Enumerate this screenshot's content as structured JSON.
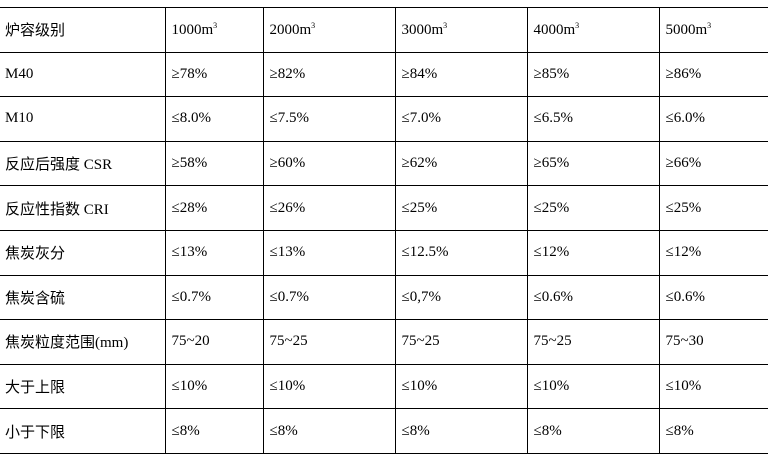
{
  "table": {
    "header": {
      "label": "炉容级别",
      "columns": [
        "1000m",
        "2000m",
        "3000m",
        "4000m",
        "5000m"
      ],
      "unit_sup": "3"
    },
    "rows": [
      {
        "label": "M40",
        "values": [
          "≥78%",
          "≥82%",
          "≥84%",
          "≥85%",
          "≥86%"
        ]
      },
      {
        "label": "M10",
        "values": [
          "≤8.0%",
          "≤7.5%",
          "≤7.0%",
          "≤6.5%",
          "≤6.0%"
        ]
      },
      {
        "label": "反应后强度 CSR",
        "values": [
          "≥58%",
          "≥60%",
          "≥62%",
          "≥65%",
          "≥66%"
        ]
      },
      {
        "label": "反应性指数 CRI",
        "values": [
          "≤28%",
          "≤26%",
          "≤25%",
          "≤25%",
          "≤25%"
        ]
      },
      {
        "label": "焦炭灰分",
        "values": [
          "≤13%",
          "≤13%",
          "≤12.5%",
          "≤12%",
          "≤12%"
        ]
      },
      {
        "label": "焦炭含硫",
        "values": [
          "≤0.7%",
          "≤0.7%",
          "≤0,7%",
          "≤0.6%",
          "≤0.6%"
        ]
      },
      {
        "label": "焦炭粒度范围(mm)",
        "values": [
          "75~20",
          "75~25",
          "75~25",
          "75~25",
          "75~30"
        ]
      },
      {
        "label": "大于上限",
        "values": [
          "≤10%",
          "≤10%",
          "≤10%",
          "≤10%",
          "≤10%"
        ]
      },
      {
        "label": "小于下限",
        "values": [
          "≤8%",
          "≤8%",
          "≤8%",
          "≤8%",
          "≤8%"
        ]
      }
    ]
  }
}
